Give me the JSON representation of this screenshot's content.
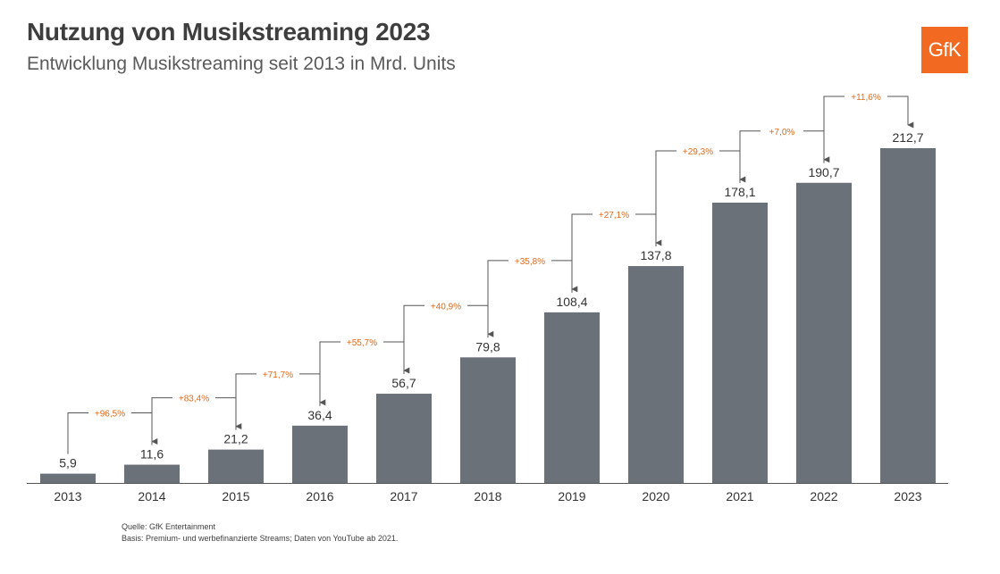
{
  "header": {
    "title": "Nutzung von Musikstreaming 2023",
    "subtitle": "Entwicklung Musikstreaming seit 2013 in Mrd. Units",
    "logo_text": "GfK"
  },
  "footer": {
    "source": "Quelle: GfK Entertainment",
    "basis": "Basis: Premium- und werbefinanzierte Streams; Daten von YouTube ab 2021."
  },
  "colors": {
    "bar": "#6b7179",
    "growth_label": "#e06a1b",
    "connector": "#555555",
    "logo": "#f26a22"
  },
  "chart_data": {
    "type": "bar",
    "categories": [
      "2013",
      "2014",
      "2015",
      "2016",
      "2017",
      "2018",
      "2019",
      "2020",
      "2021",
      "2022",
      "2023"
    ],
    "values": [
      5.9,
      11.6,
      21.2,
      36.4,
      56.7,
      79.8,
      108.4,
      137.8,
      178.1,
      190.7,
      212.7
    ],
    "value_labels": [
      "5,9",
      "11,6",
      "21,2",
      "36,4",
      "56,7",
      "79,8",
      "108,4",
      "137,8",
      "178,1",
      "190,7",
      "212,7"
    ],
    "growth_labels": [
      "+96,5%",
      "+83,4%",
      "+71,7%",
      "+55,7%",
      "+40,9%",
      "+35,8%",
      "+27,1%",
      "+29,3%",
      "+7,0%",
      "+11,6%"
    ],
    "ylim": [
      0,
      212.7
    ],
    "grid": false,
    "legend": "none"
  }
}
